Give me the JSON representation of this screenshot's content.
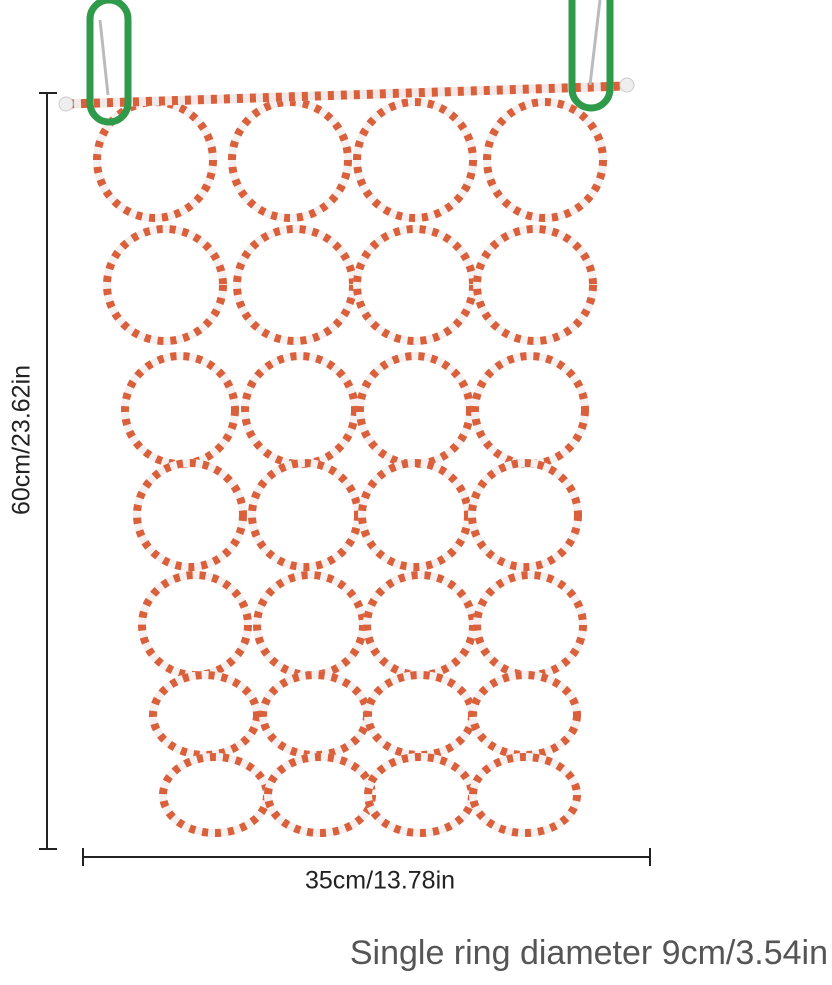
{
  "dimensions": {
    "height_label": "60cm/23.62in",
    "width_label": "35cm/13.78in",
    "ring_caption": "Single ring diameter 9cm/3.54in"
  },
  "product": {
    "rope_colors": [
      "#d9603a",
      "#f5f0f0"
    ],
    "carabiner_color": "#2e9a4a",
    "dimension_line_color": "#222222"
  }
}
